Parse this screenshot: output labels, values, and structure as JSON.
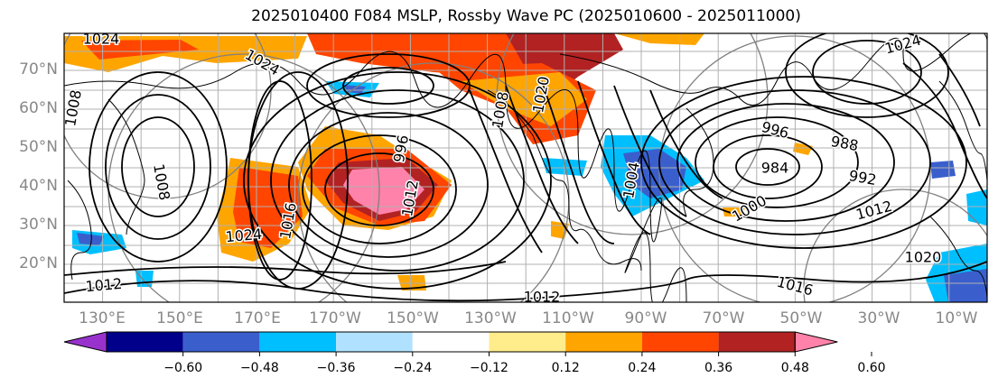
{
  "title": "2025010400 F084 MSLP, Rossby Wave PC (2025010600 - 2025011000)",
  "lat_labels": [
    "70°N",
    "60°N",
    "50°N",
    "40°N",
    "30°N",
    "20°N"
  ],
  "lon_labels": [
    "130°E",
    "150°E",
    "170°E",
    "170°W",
    "150°W",
    "130°W",
    "110°W",
    "90°W",
    "70°W",
    "50°W",
    "30°W",
    "10°W"
  ],
  "colorbar": {
    "ticks": [
      "−0.60",
      "−0.48",
      "−0.36",
      "−0.24",
      "−0.12",
      "0.12",
      "0.24",
      "0.36",
      "0.48",
      "0.60"
    ],
    "colors": [
      "#9932cc",
      "#00008b",
      "#3a5fcd",
      "#00bfff",
      "#b0e2ff",
      "#ffffff",
      "#ffec8b",
      "#ffa500",
      "#ff4500",
      "#b22222",
      "#ff82ab"
    ]
  },
  "contour_labels": [
    {
      "text": "1024"
    },
    {
      "text": "1024"
    },
    {
      "text": "1024"
    },
    {
      "text": "1024"
    },
    {
      "text": "1012"
    },
    {
      "text": "1016"
    },
    {
      "text": "1020"
    },
    {
      "text": "1012"
    },
    {
      "text": "1000"
    },
    {
      "text": "996"
    },
    {
      "text": "988"
    },
    {
      "text": "984"
    },
    {
      "text": "992"
    },
    {
      "text": "1008"
    },
    {
      "text": "1016"
    },
    {
      "text": "1012"
    },
    {
      "text": "996"
    },
    {
      "text": "1008"
    },
    {
      "text": "1020"
    },
    {
      "text": "1012"
    },
    {
      "text": "1008"
    },
    {
      "text": "1004"
    }
  ]
}
